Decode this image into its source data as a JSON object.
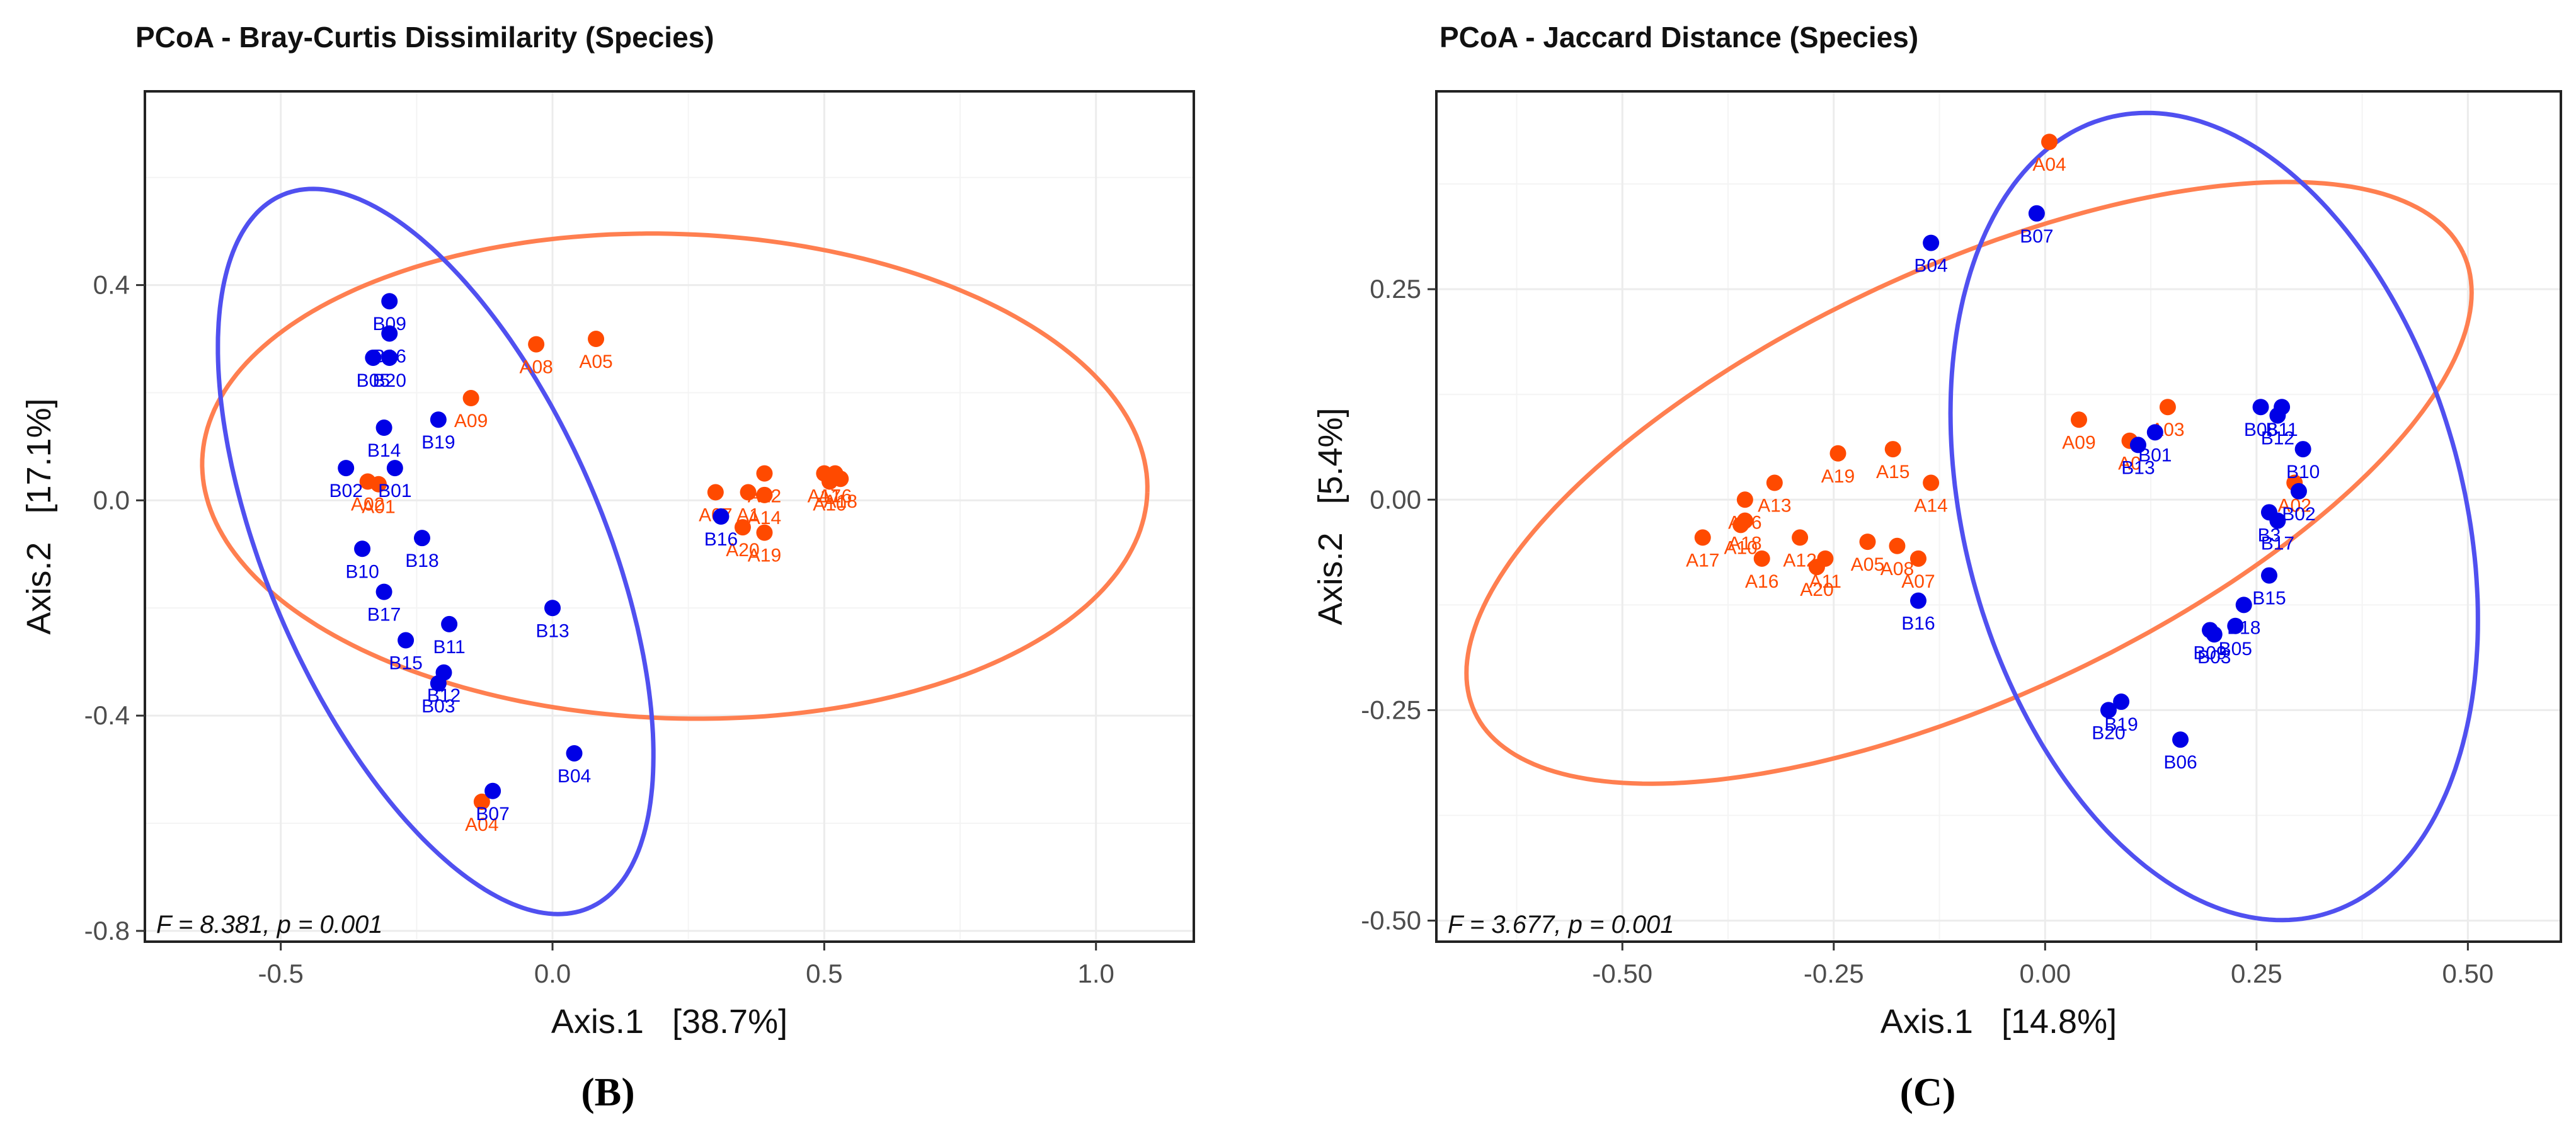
{
  "colors": {
    "group_a": "#ff4a00",
    "group_b": "#0000e6",
    "ellipse_a": "#ff7f50",
    "ellipse_b": "#5050f0",
    "grid": "#ececec",
    "axis_text": "#4d4d4d",
    "panel_border": "#222222"
  },
  "chart_data": [
    {
      "type": "scatter",
      "title": "PCoA - Bray-Curtis Dissimilarity (Species)",
      "xlabel": "Axis.1   [38.7%]",
      "ylabel": "Axis.2   [17.1%]",
      "xlim": [
        -0.75,
        1.18
      ],
      "ylim": [
        -0.82,
        0.76
      ],
      "xticks": [
        -0.5,
        0.0,
        0.5,
        1.0
      ],
      "xtick_labels": [
        "-0.5",
        "0.0",
        "0.5",
        "1.0"
      ],
      "yticks": [
        -0.8,
        -0.4,
        0.0,
        0.4
      ],
      "ytick_labels": [
        "-0.8",
        "-0.4",
        "0.0",
        "0.4"
      ],
      "stat_text": "F = 8.381, p = 0.001",
      "panel_label": "(B)",
      "grid": true,
      "series": [
        {
          "name": "A",
          "color_key": "group_a",
          "points": [
            {
              "label": "A08",
              "x": -0.03,
              "y": 0.29
            },
            {
              "label": "A05",
              "x": 0.08,
              "y": 0.3
            },
            {
              "label": "A09",
              "x": -0.15,
              "y": 0.19
            },
            {
              "label": "A02",
              "x": -0.34,
              "y": 0.035
            },
            {
              "label": "A01",
              "x": -0.32,
              "y": 0.03
            },
            {
              "label": "A07",
              "x": 0.3,
              "y": 0.015
            },
            {
              "label": "A12",
              "x": 0.39,
              "y": 0.05
            },
            {
              "label": "A14",
              "x": 0.39,
              "y": 0.01
            },
            {
              "label": "A1",
              "x": 0.36,
              "y": 0.015
            },
            {
              "label": "A20",
              "x": 0.35,
              "y": -0.05
            },
            {
              "label": "A19",
              "x": 0.39,
              "y": -0.06
            },
            {
              "label": "A17",
              "x": 0.5,
              "y": 0.05
            },
            {
              "label": "A16",
              "x": 0.52,
              "y": 0.05
            },
            {
              "label": "A10",
              "x": 0.51,
              "y": 0.035
            },
            {
              "label": "A18",
              "x": 0.53,
              "y": 0.04
            },
            {
              "label": "A04",
              "x": -0.13,
              "y": -0.56
            }
          ]
        },
        {
          "name": "B",
          "color_key": "group_b",
          "points": [
            {
              "label": "B09",
              "x": -0.3,
              "y": 0.37
            },
            {
              "label": "B16",
              "x": -0.3,
              "y": 0.31
            },
            {
              "label": "B05",
              "x": -0.33,
              "y": 0.265
            },
            {
              "label": "B20",
              "x": -0.3,
              "y": 0.265
            },
            {
              "label": "B19",
              "x": -0.21,
              "y": 0.15
            },
            {
              "label": "B14",
              "x": -0.31,
              "y": 0.135
            },
            {
              "label": "B01",
              "x": -0.29,
              "y": 0.06
            },
            {
              "label": "B02",
              "x": -0.38,
              "y": 0.06
            },
            {
              "label": "B18",
              "x": -0.24,
              "y": -0.07
            },
            {
              "label": "B10",
              "x": -0.35,
              "y": -0.09
            },
            {
              "label": "B17",
              "x": -0.31,
              "y": -0.17
            },
            {
              "label": "B11",
              "x": -0.19,
              "y": -0.23
            },
            {
              "label": "B15",
              "x": -0.27,
              "y": -0.26
            },
            {
              "label": "B12",
              "x": -0.2,
              "y": -0.32
            },
            {
              "label": "B03",
              "x": -0.21,
              "y": -0.34
            },
            {
              "label": "B13",
              "x": 0.0,
              "y": -0.2
            },
            {
              "label": "B04",
              "x": 0.04,
              "y": -0.47
            },
            {
              "label": "B07",
              "x": -0.11,
              "y": -0.54
            },
            {
              "label": "B16",
              "x": 0.31,
              "y": -0.03
            }
          ]
        }
      ],
      "ellipses": [
        {
          "name": "A",
          "color_key": "ellipse_a",
          "cx": 0.225,
          "cy": 0.045,
          "rx": 0.87,
          "ry": 0.45,
          "angle_deg": -2
        },
        {
          "name": "B",
          "color_key": "ellipse_b",
          "cx": -0.215,
          "cy": -0.095,
          "rx": 0.72,
          "ry": 0.31,
          "angle_deg": -67
        }
      ]
    },
    {
      "type": "scatter",
      "title": "PCoA - Jaccard Distance (Species)",
      "xlabel": "Axis.1   [14.8%]",
      "ylabel": "Axis.2   [5.4%]",
      "xlim": [
        -0.72,
        0.61
      ],
      "ylim": [
        -0.525,
        0.485
      ],
      "xticks": [
        -0.5,
        -0.25,
        0.0,
        0.25,
        0.5
      ],
      "xtick_labels": [
        "-0.50",
        "-0.25",
        "0.00",
        "0.25",
        "0.50"
      ],
      "yticks": [
        -0.5,
        -0.25,
        0.0,
        0.25
      ],
      "ytick_labels": [
        "-0.50",
        "-0.25",
        "0.00",
        "0.25"
      ],
      "stat_text": "F = 3.677, p = 0.001",
      "panel_label": "(C)",
      "grid": true,
      "series": [
        {
          "name": "A",
          "color_key": "group_a",
          "points": [
            {
              "label": "A04",
              "x": 0.005,
              "y": 0.425
            },
            {
              "label": "A03",
              "x": 0.145,
              "y": 0.11
            },
            {
              "label": "A09",
              "x": 0.04,
              "y": 0.095
            },
            {
              "label": "A0",
              "x": 0.1,
              "y": 0.07
            },
            {
              "label": "A19",
              "x": -0.245,
              "y": 0.055
            },
            {
              "label": "A15",
              "x": -0.18,
              "y": 0.06
            },
            {
              "label": "A14",
              "x": -0.135,
              "y": 0.02
            },
            {
              "label": "A13",
              "x": -0.32,
              "y": 0.02
            },
            {
              "label": "A06",
              "x": -0.355,
              "y": 0.0
            },
            {
              "label": "A18",
              "x": -0.355,
              "y": -0.025
            },
            {
              "label": "A10",
              "x": -0.36,
              "y": -0.03
            },
            {
              "label": "A17",
              "x": -0.405,
              "y": -0.045
            },
            {
              "label": "A12",
              "x": -0.29,
              "y": -0.045
            },
            {
              "label": "A05",
              "x": -0.21,
              "y": -0.05
            },
            {
              "label": "A08",
              "x": -0.175,
              "y": -0.055
            },
            {
              "label": "A07",
              "x": -0.15,
              "y": -0.07
            },
            {
              "label": "A16",
              "x": -0.335,
              "y": -0.07
            },
            {
              "label": "A11",
              "x": -0.26,
              "y": -0.07
            },
            {
              "label": "A20",
              "x": -0.27,
              "y": -0.08
            },
            {
              "label": "A02",
              "x": 0.295,
              "y": 0.02
            }
          ]
        },
        {
          "name": "B",
          "color_key": "group_b",
          "points": [
            {
              "label": "B07",
              "x": -0.01,
              "y": 0.34
            },
            {
              "label": "B04",
              "x": -0.135,
              "y": 0.305
            },
            {
              "label": "B01",
              "x": 0.13,
              "y": 0.08
            },
            {
              "label": "B13",
              "x": 0.11,
              "y": 0.065
            },
            {
              "label": "B08",
              "x": 0.255,
              "y": 0.11
            },
            {
              "label": "B11",
              "x": 0.28,
              "y": 0.11
            },
            {
              "label": "B12",
              "x": 0.275,
              "y": 0.1
            },
            {
              "label": "B10",
              "x": 0.305,
              "y": 0.06
            },
            {
              "label": "B02",
              "x": 0.3,
              "y": 0.01
            },
            {
              "label": "B3",
              "x": 0.265,
              "y": -0.015
            },
            {
              "label": "B17",
              "x": 0.275,
              "y": -0.025
            },
            {
              "label": "B16",
              "x": -0.15,
              "y": -0.12
            },
            {
              "label": "B15",
              "x": 0.265,
              "y": -0.09
            },
            {
              "label": "B18",
              "x": 0.235,
              "y": -0.125
            },
            {
              "label": "B05",
              "x": 0.225,
              "y": -0.15
            },
            {
              "label": "B09",
              "x": 0.195,
              "y": -0.155
            },
            {
              "label": "B03",
              "x": 0.2,
              "y": -0.16
            },
            {
              "label": "B19",
              "x": 0.09,
              "y": -0.24
            },
            {
              "label": "B20",
              "x": 0.075,
              "y": -0.25
            },
            {
              "label": "B06",
              "x": 0.16,
              "y": -0.285
            }
          ]
        }
      ],
      "ellipses": [
        {
          "name": "A",
          "color_key": "ellipse_a",
          "cx": -0.09,
          "cy": 0.02,
          "rx": 0.645,
          "ry": 0.255,
          "angle_deg": 25
        },
        {
          "name": "B",
          "color_key": "ellipse_b",
          "cx": 0.2,
          "cy": -0.02,
          "rx": 0.49,
          "ry": 0.295,
          "angle_deg": -75
        }
      ]
    }
  ]
}
